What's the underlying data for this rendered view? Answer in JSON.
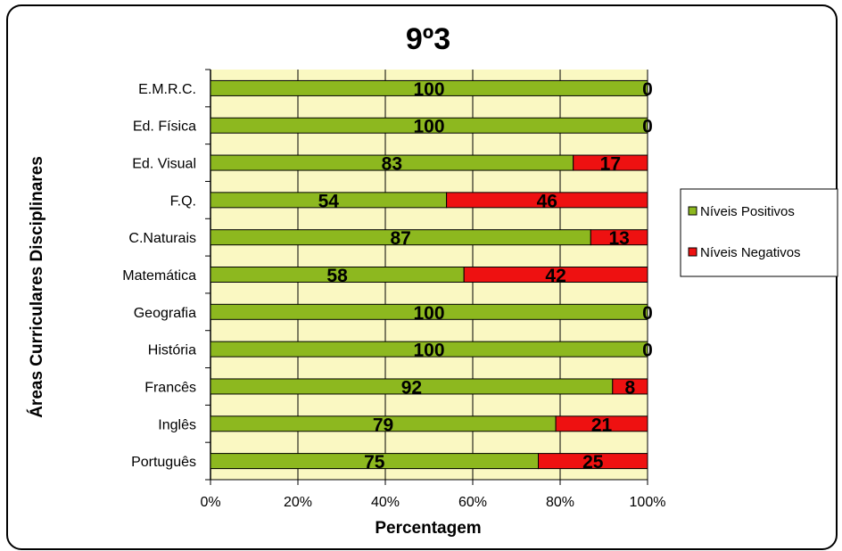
{
  "chart_data": {
    "type": "bar",
    "orientation": "horizontal",
    "stacked": "percent",
    "title": "9º3",
    "xlabel": "Percentagem",
    "ylabel": "Áreas Curriculares  Disciplinares",
    "categories": [
      "E.M.R.C.",
      "Ed. Física",
      "Ed. Visual",
      "F.Q.",
      "C.Naturais",
      "Matemática",
      "Geografia",
      "História",
      "Francês",
      "Inglês",
      "Português"
    ],
    "series": [
      {
        "name": "Níveis Positivos",
        "color": "#8DB81F",
        "values": [
          100,
          100,
          83,
          54,
          87,
          58,
          100,
          100,
          92,
          79,
          75
        ]
      },
      {
        "name": "Níveis Negativos",
        "color": "#EE1111",
        "values": [
          0,
          0,
          17,
          46,
          13,
          42,
          0,
          0,
          8,
          21,
          25
        ]
      }
    ],
    "xticks": [
      "0%",
      "20%",
      "40%",
      "60%",
      "80%",
      "100%"
    ],
    "xlim": [
      0,
      100
    ],
    "plot_background": "#FAF8C2",
    "grid": "vertical",
    "legend_position": "right"
  }
}
